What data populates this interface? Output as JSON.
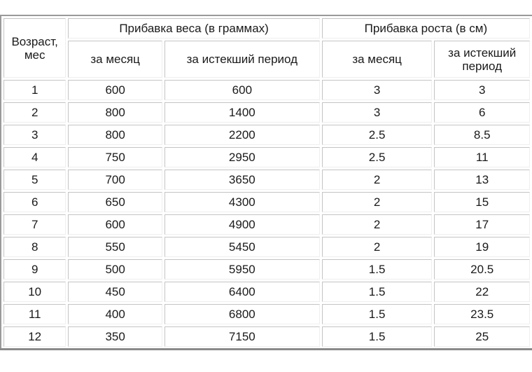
{
  "table": {
    "age_header_line1": "Возраст,",
    "age_header_line2": "мес",
    "weight_group_header": "Прибавка веса (в граммах)",
    "height_group_header": "Прибавка роста (в см)",
    "weight_per_month_header": "за месяц",
    "weight_total_header": "за истекший период",
    "height_per_month_header": "за месяц",
    "height_total_header_line1": "за истекший",
    "height_total_header_line2": "период",
    "rows": [
      [
        "1",
        "600",
        "600",
        "3",
        "3"
      ],
      [
        "2",
        "800",
        "1400",
        "3",
        "6"
      ],
      [
        "3",
        "800",
        "2200",
        "2.5",
        "8.5"
      ],
      [
        "4",
        "750",
        "2950",
        "2.5",
        "11"
      ],
      [
        "5",
        "700",
        "3650",
        "2",
        "13"
      ],
      [
        "6",
        "650",
        "4300",
        "2",
        "15"
      ],
      [
        "7",
        "600",
        "4900",
        "2",
        "17"
      ],
      [
        "8",
        "550",
        "5450",
        "2",
        "19"
      ],
      [
        "9",
        "500",
        "5950",
        "1.5",
        "20.5"
      ],
      [
        "10",
        "450",
        "6400",
        "1.5",
        "22"
      ],
      [
        "11",
        "400",
        "6800",
        "1.5",
        "23.5"
      ],
      [
        "12",
        "350",
        "7150",
        "1.5",
        "25"
      ]
    ]
  }
}
